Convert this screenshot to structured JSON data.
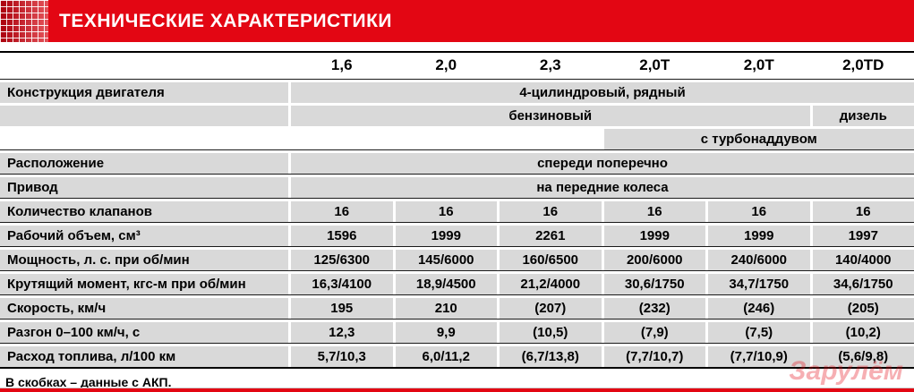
{
  "banner": {
    "title": "ТЕХНИЧЕСКИЕ ХАРАКТЕРИСТИКИ"
  },
  "colors": {
    "accent_red": "#e30613",
    "row_gray": "#d9d9d9"
  },
  "columns": [
    "1,6",
    "2,0",
    "2,3",
    "2,0T",
    "2,0T",
    "2,0TD"
  ],
  "engine": {
    "label": "Конструкция двигателя",
    "all": "4-цилиндровый, рядный",
    "petrol": "бензиновый",
    "diesel": "дизель",
    "turbo": "с турбонаддувом"
  },
  "layout_rows": [
    {
      "label": "Расположение",
      "value": "спереди поперечно"
    },
    {
      "label": "Привод",
      "value": "на передние колеса"
    }
  ],
  "spec_rows": [
    {
      "label": "Количество клапанов",
      "values": [
        "16",
        "16",
        "16",
        "16",
        "16",
        "16"
      ]
    },
    {
      "label": "Рабочий объем, см³",
      "values": [
        "1596",
        "1999",
        "2261",
        "1999",
        "1999",
        "1997"
      ]
    },
    {
      "label": "Мощность, л. с. при об/мин",
      "values": [
        "125/6300",
        "145/6000",
        "160/6500",
        "200/6000",
        "240/6000",
        "140/4000"
      ]
    },
    {
      "label": "Крутящий момент, кгс-м при об/мин",
      "values": [
        "16,3/4100",
        "18,9/4500",
        "21,2/4000",
        "30,6/1750",
        "34,7/1750",
        "34,6/1750"
      ]
    },
    {
      "label": "Скорость, км/ч",
      "values": [
        "195",
        "210",
        "(207)",
        "(232)",
        "(246)",
        "(205)"
      ]
    },
    {
      "label": "Разгон 0–100 км/ч, с",
      "values": [
        "12,3",
        "9,9",
        "(10,5)",
        "(7,9)",
        "(7,5)",
        "(10,2)"
      ]
    },
    {
      "label": "Расход топлива, л/100 км",
      "values": [
        "5,7/10,3",
        "6,0/11,2",
        "(6,7/13,8)",
        "(7,7/10,7)",
        "(7,7/10,9)",
        "(5,6/9,8)"
      ]
    }
  ],
  "footnote": "В скобках – данные с АКП.",
  "watermark": "Зарулём"
}
